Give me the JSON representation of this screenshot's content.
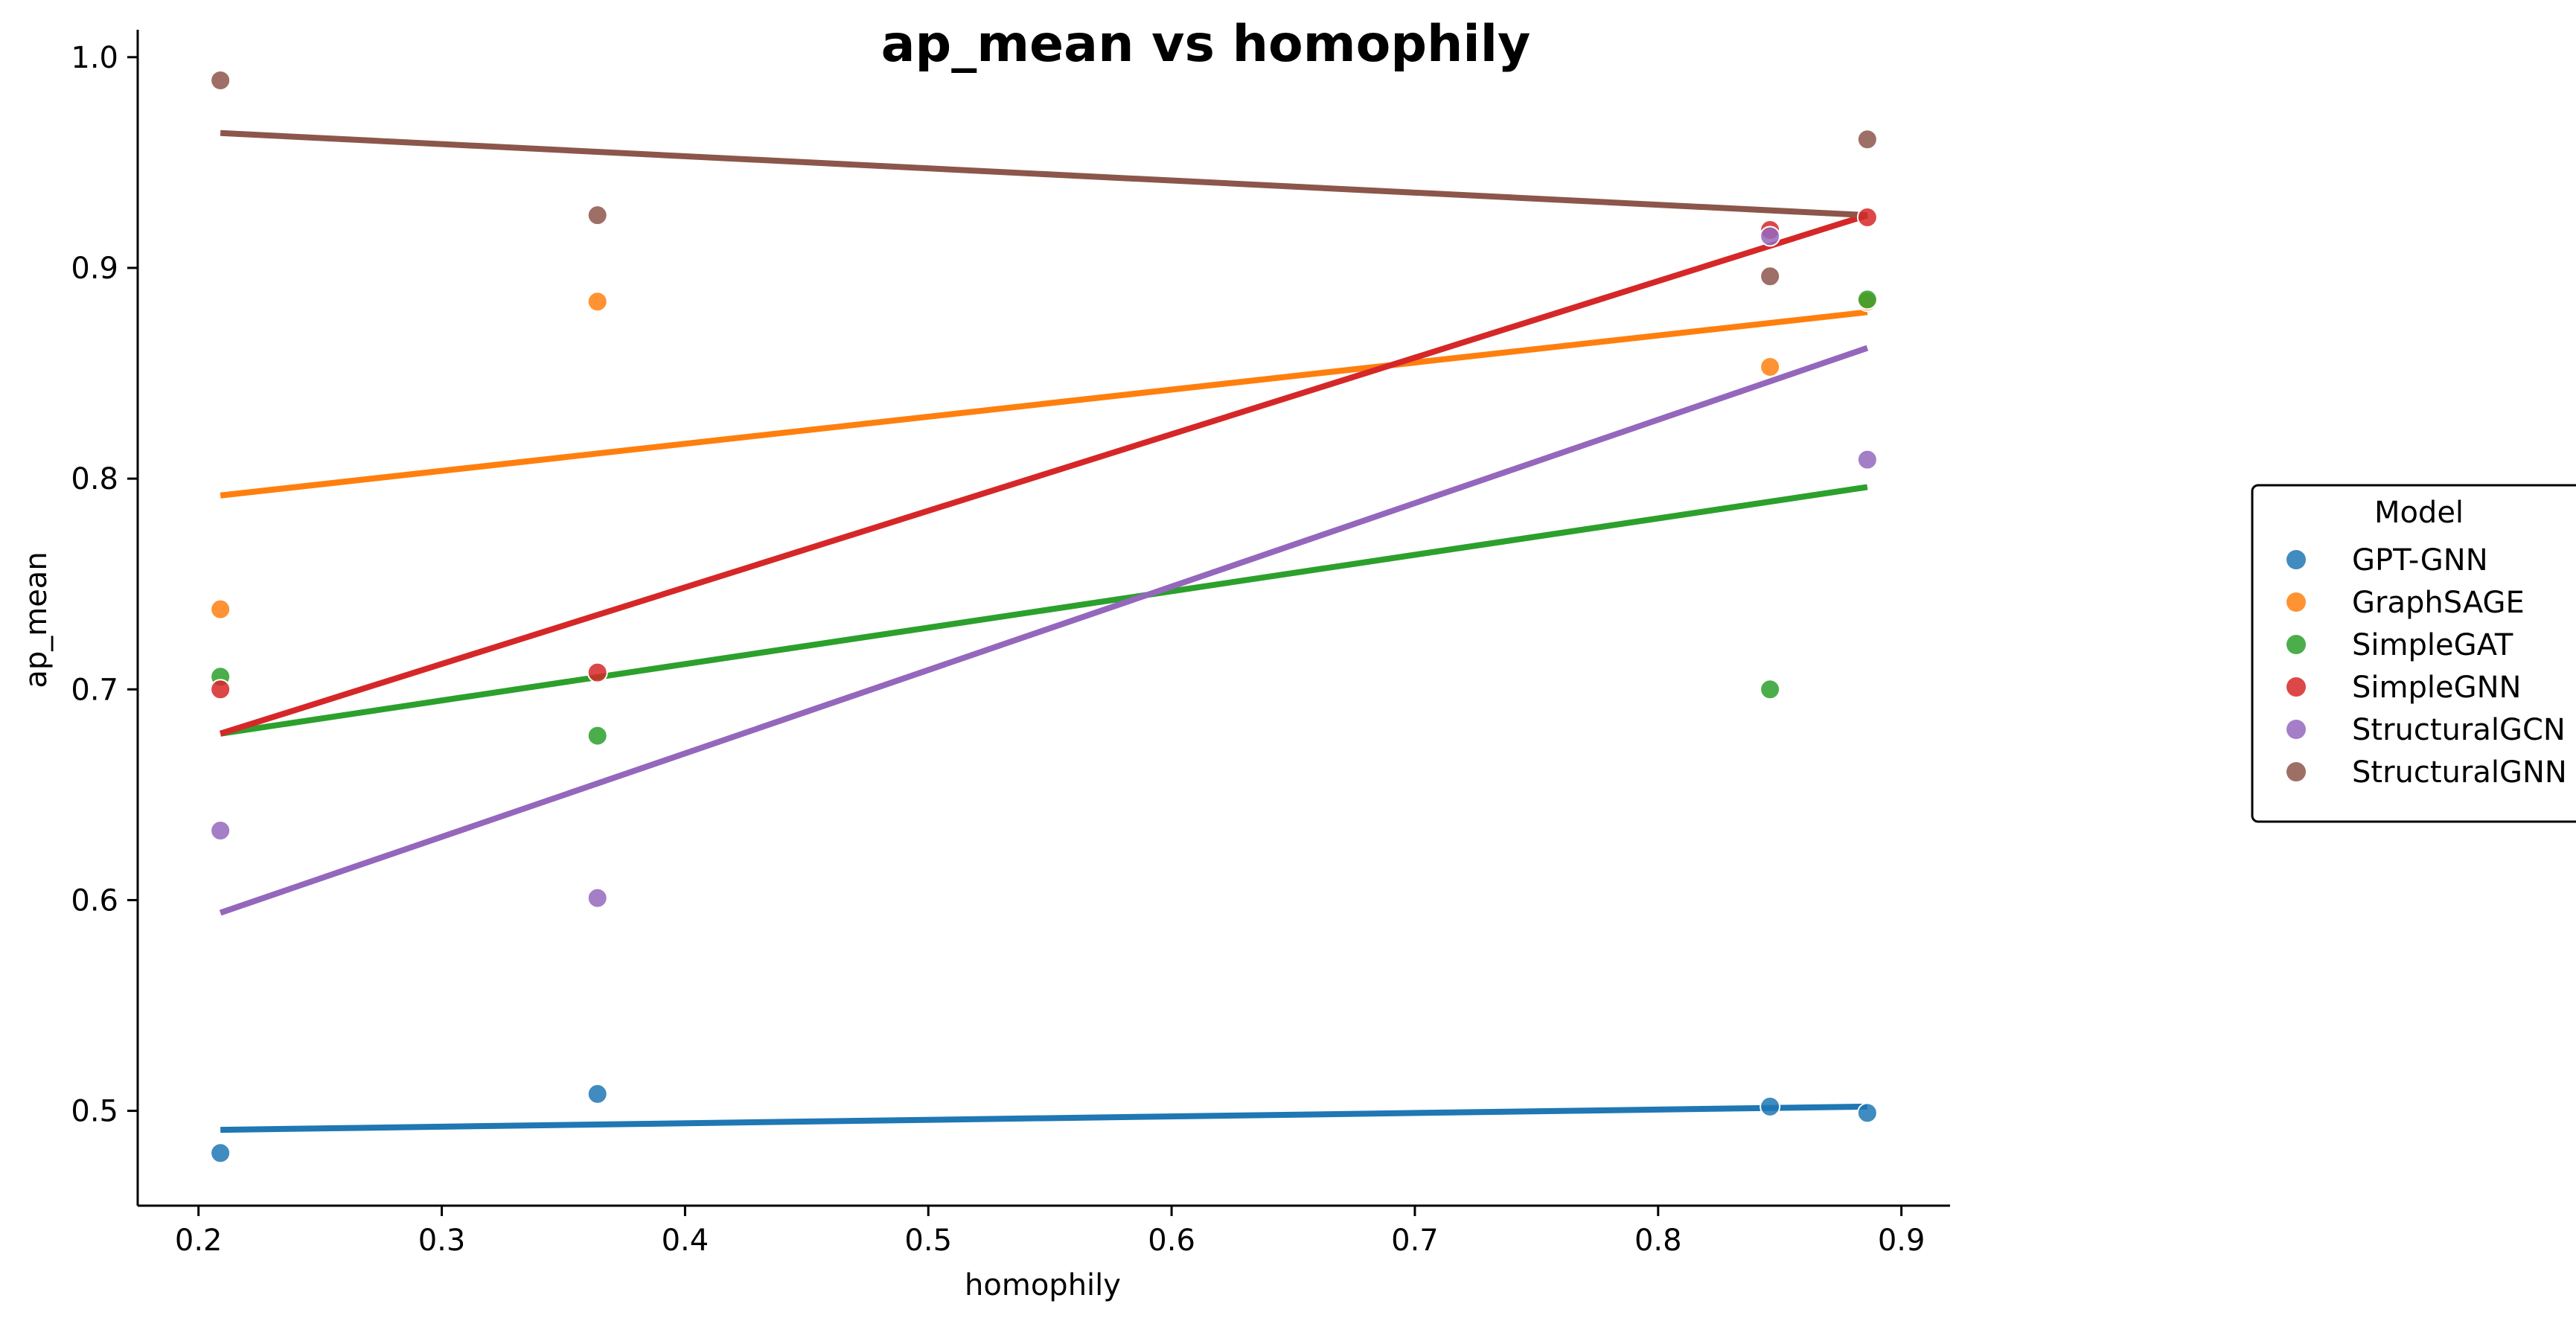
{
  "chart_data": {
    "type": "scatter",
    "title": "ap_mean vs homophily",
    "xlabel": "homophily",
    "ylabel": "ap_mean",
    "xlim": [
      0.175,
      0.92
    ],
    "ylim": [
      0.455,
      1.013
    ],
    "xticks": [
      0.2,
      0.3,
      0.4,
      0.5,
      0.6,
      0.7,
      0.8,
      0.9
    ],
    "yticks": [
      0.5,
      0.6,
      0.7,
      0.8,
      0.9,
      1.0
    ],
    "grid": false,
    "legend": {
      "title": "Model",
      "placement": "center-right"
    },
    "series": [
      {
        "name": "GPT-GNN",
        "color": "#1f77b4",
        "points": [
          [
            0.209,
            0.48
          ],
          [
            0.364,
            0.508
          ],
          [
            0.846,
            0.502
          ],
          [
            0.886,
            0.499
          ]
        ],
        "fit": [
          [
            0.209,
            0.491
          ],
          [
            0.886,
            0.502
          ]
        ]
      },
      {
        "name": "GraphSAGE",
        "color": "#ff7f0e",
        "points": [
          [
            0.209,
            0.738
          ],
          [
            0.364,
            0.884
          ],
          [
            0.846,
            0.853
          ],
          [
            0.886,
            0.884
          ]
        ],
        "fit": [
          [
            0.209,
            0.792
          ],
          [
            0.886,
            0.879
          ]
        ]
      },
      {
        "name": "SimpleGAT",
        "color": "#2ca02c",
        "points": [
          [
            0.209,
            0.706
          ],
          [
            0.364,
            0.678
          ],
          [
            0.846,
            0.7
          ],
          [
            0.886,
            0.885
          ]
        ],
        "fit": [
          [
            0.209,
            0.679
          ],
          [
            0.886,
            0.796
          ]
        ]
      },
      {
        "name": "SimpleGNN",
        "color": "#d62728",
        "points": [
          [
            0.209,
            0.7
          ],
          [
            0.364,
            0.708
          ],
          [
            0.846,
            0.918
          ],
          [
            0.886,
            0.924
          ]
        ],
        "fit": [
          [
            0.209,
            0.679
          ],
          [
            0.886,
            0.925
          ]
        ]
      },
      {
        "name": "StructuralGCN",
        "color": "#9467bd",
        "points": [
          [
            0.209,
            0.633
          ],
          [
            0.364,
            0.601
          ],
          [
            0.846,
            0.915
          ],
          [
            0.886,
            0.809
          ]
        ],
        "fit": [
          [
            0.209,
            0.594
          ],
          [
            0.886,
            0.862
          ]
        ]
      },
      {
        "name": "StructuralGNN",
        "color": "#8c564b",
        "points": [
          [
            0.209,
            0.989
          ],
          [
            0.364,
            0.925
          ],
          [
            0.846,
            0.896
          ],
          [
            0.886,
            0.961
          ]
        ],
        "fit": [
          [
            0.209,
            0.964
          ],
          [
            0.886,
            0.925
          ]
        ]
      }
    ]
  }
}
